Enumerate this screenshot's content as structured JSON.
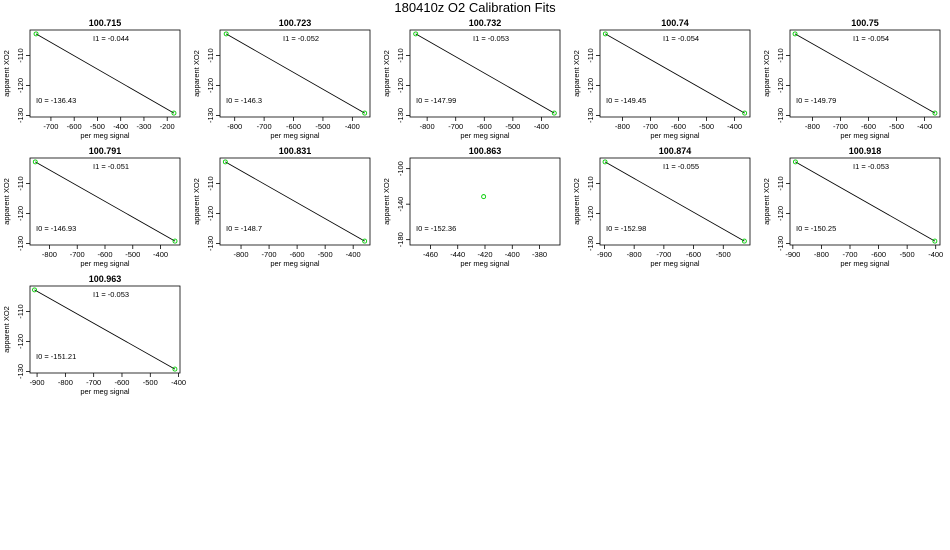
{
  "title": "180410z   O2 Calibration Fits",
  "colors": {
    "line": "#000000",
    "point": "#00cc00",
    "box": "#000000"
  },
  "chart_data": [
    {
      "type": "scatter",
      "title": "100.715",
      "xlabel": "per meg signal",
      "ylabel": "apparent XO2",
      "xlim": [
        -790,
        -145
      ],
      "ylim": [
        -130.5,
        -101.5
      ],
      "xticks": [
        -700,
        -600,
        -500,
        -400,
        -300,
        -200
      ],
      "yticks": [
        -110,
        -120,
        -130
      ],
      "points": [
        {
          "x": -764,
          "y": -102.8
        },
        {
          "x": -171,
          "y": -129.2
        }
      ],
      "fit": {
        "i0": -136.43,
        "i1": -0.044
      },
      "labels": {
        "i1": "I1 =  -0.044",
        "i0": "I0 =  -136.43"
      }
    },
    {
      "type": "scatter",
      "title": "100.723",
      "xlabel": "per meg signal",
      "ylabel": "apparent XO2",
      "xlim": [
        -850,
        -340
      ],
      "ylim": [
        -130.5,
        -101.5
      ],
      "xticks": [
        -800,
        -700,
        -600,
        -500,
        -400
      ],
      "yticks": [
        -110,
        -120,
        -130
      ],
      "points": [
        {
          "x": -829,
          "y": -102.8
        },
        {
          "x": -358,
          "y": -129.2
        }
      ],
      "fit": {
        "i0": -146.3,
        "i1": -0.052
      },
      "labels": {
        "i1": "I1 =  -0.052",
        "i0": "I0 =  -146.3"
      }
    },
    {
      "type": "scatter",
      "title": "100.732",
      "xlabel": "per meg signal",
      "ylabel": "apparent XO2",
      "xlim": [
        -860,
        -335
      ],
      "ylim": [
        -130.5,
        -101.5
      ],
      "xticks": [
        -800,
        -700,
        -600,
        -500,
        -400
      ],
      "yticks": [
        -110,
        -120,
        -130
      ],
      "points": [
        {
          "x": -840,
          "y": -102.8
        },
        {
          "x": -355,
          "y": -129.2
        }
      ],
      "fit": {
        "i0": -147.99,
        "i1": -0.053
      },
      "labels": {
        "i1": "I1 =  -0.053",
        "i0": "I0 =  -147.99"
      }
    },
    {
      "type": "scatter",
      "title": "100.74",
      "xlabel": "per meg signal",
      "ylabel": "apparent XO2",
      "xlim": [
        -880,
        -345
      ],
      "ylim": [
        -130.5,
        -101.5
      ],
      "xticks": [
        -800,
        -700,
        -600,
        -500,
        -400
      ],
      "yticks": [
        -110,
        -120,
        -130
      ],
      "points": [
        {
          "x": -861,
          "y": -102.8
        },
        {
          "x": -364,
          "y": -129.2
        }
      ],
      "fit": {
        "i0": -149.45,
        "i1": -0.054
      },
      "labels": {
        "i1": "I1 =  -0.054",
        "i0": "I0 =  -149.45"
      }
    },
    {
      "type": "scatter",
      "title": "100.75",
      "xlabel": "per meg signal",
      "ylabel": "apparent XO2",
      "xlim": [
        -880,
        -345
      ],
      "ylim": [
        -130.5,
        -101.5
      ],
      "xticks": [
        -800,
        -700,
        -600,
        -500,
        -400
      ],
      "yticks": [
        -110,
        -120,
        -130
      ],
      "points": [
        {
          "x": -862,
          "y": -102.8
        },
        {
          "x": -363,
          "y": -129.2
        }
      ],
      "fit": {
        "i0": -149.79,
        "i1": -0.054
      },
      "labels": {
        "i1": "I1 =  -0.054",
        "i0": "I0 =  -149.79"
      }
    },
    {
      "type": "scatter",
      "title": "100.791",
      "xlabel": "per meg signal",
      "ylabel": "apparent XO2",
      "xlim": [
        -870,
        -330
      ],
      "ylim": [
        -130.5,
        -101.5
      ],
      "xticks": [
        -800,
        -700,
        -600,
        -500,
        -400
      ],
      "yticks": [
        -110,
        -120,
        -130
      ],
      "points": [
        {
          "x": -851,
          "y": -102.8
        },
        {
          "x": -348,
          "y": -129.2
        }
      ],
      "fit": {
        "i0": -146.93,
        "i1": -0.051
      },
      "labels": {
        "i1": "I1 =  -0.051",
        "i0": "I0 =  -146.93"
      }
    },
    {
      "type": "scatter",
      "title": "100.831",
      "xlabel": "per meg signal",
      "ylabel": "apparent XO2",
      "xlim": [
        -875,
        -340
      ],
      "ylim": [
        -130.5,
        -101.5
      ],
      "xticks": [
        -800,
        -700,
        -600,
        -500,
        -400
      ],
      "yticks": [
        -110,
        -120,
        -130
      ],
      "points": [
        {
          "x": -856,
          "y": -102.8
        },
        {
          "x": -359,
          "y": -129.2
        }
      ],
      "fit": {
        "i0": -148.7,
        "i1": -0.053
      },
      "labels": {
        "i1": "",
        "i0": "I0 =  -148.7"
      }
    },
    {
      "type": "scatter",
      "title": "100.863",
      "xlabel": "per meg signal",
      "ylabel": "apparent XO2",
      "xlim": [
        -475,
        -365
      ],
      "ylim": [
        -186,
        -88
      ],
      "xticks": [
        -460,
        -440,
        -420,
        -400,
        -380
      ],
      "yticks": [
        -100,
        -140,
        -180
      ],
      "points": [
        {
          "x": -421,
          "y": -131.5
        }
      ],
      "fit": null,
      "labels": {
        "i1": "",
        "i0": "I0 =  -152.36"
      }
    },
    {
      "type": "scatter",
      "title": "100.874",
      "xlabel": "per meg signal",
      "ylabel": "apparent XO2",
      "xlim": [
        -915,
        -410
      ],
      "ylim": [
        -130.5,
        -101.5
      ],
      "xticks": [
        -900,
        -800,
        -700,
        -600,
        -500
      ],
      "yticks": [
        -110,
        -120,
        -130
      ],
      "points": [
        {
          "x": -898,
          "y": -102.8
        },
        {
          "x": -429,
          "y": -129.2
        }
      ],
      "fit": {
        "i0": -152.98,
        "i1": -0.055
      },
      "labels": {
        "i1": "I1 =  -0.055",
        "i0": "I0 =  -152.98"
      }
    },
    {
      "type": "scatter",
      "title": "100.918",
      "xlabel": "per meg signal",
      "ylabel": "apparent XO2",
      "xlim": [
        -910,
        -385
      ],
      "ylim": [
        -130.5,
        -101.5
      ],
      "xticks": [
        -900,
        -800,
        -700,
        -600,
        -500,
        -400
      ],
      "yticks": [
        -110,
        -120,
        -130
      ],
      "points": [
        {
          "x": -891,
          "y": -102.8
        },
        {
          "x": -403,
          "y": -129.2
        }
      ],
      "fit": {
        "i0": -150.25,
        "i1": -0.053
      },
      "labels": {
        "i1": "I1 =  -0.053",
        "i0": "I0 =  -150.25"
      }
    },
    {
      "type": "scatter",
      "title": "100.963",
      "xlabel": "per meg signal",
      "ylabel": "apparent XO2",
      "xlim": [
        -925,
        -395
      ],
      "ylim": [
        -130.5,
        -101.5
      ],
      "xticks": [
        -900,
        -800,
        -700,
        -600,
        -500,
        -400
      ],
      "yticks": [
        -110,
        -120,
        -130
      ],
      "points": [
        {
          "x": -909,
          "y": -102.8
        },
        {
          "x": -413,
          "y": -129.2
        }
      ],
      "fit": {
        "i0": -151.21,
        "i1": -0.053
      },
      "labels": {
        "i1": "I1 =  -0.053",
        "i0": "I0 =  -151.21"
      }
    }
  ]
}
